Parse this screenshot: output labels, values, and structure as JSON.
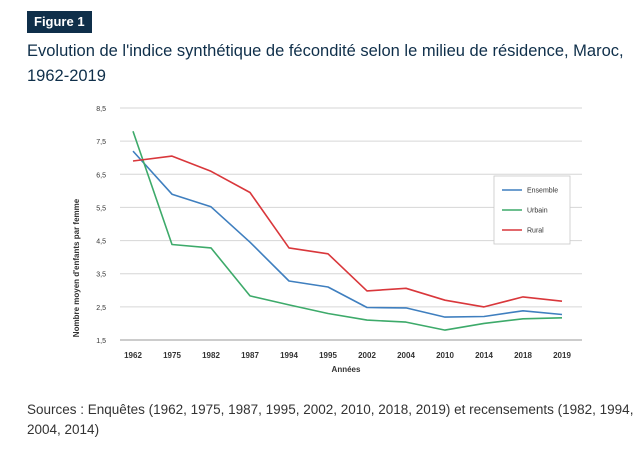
{
  "figure_label": "Figure 1",
  "title": "Evolution de l'indice synthétique de fécondité selon le milieu de résidence, Maroc, 1962-2019",
  "sources": "Sources : Enquêtes (1962, 1975, 1987, 1995, 2002, 2010, 2018, 2019) et recensements (1982, 1994, 2004, 2014)",
  "colors": {
    "ensemble": "#3f7fbf",
    "urbain": "#3daa6a",
    "rural": "#d9373b",
    "grid": "#d6d6d6",
    "axis_text": "#333333"
  },
  "chart_data": {
    "type": "line",
    "title": "",
    "xlabel": "Années",
    "ylabel": "Nombre moyen d'enfants par femme",
    "categories": [
      "1962",
      "1975",
      "1982",
      "1987",
      "1994",
      "1995",
      "2002",
      "2004",
      "2010",
      "2014",
      "2018",
      "2019"
    ],
    "ylim": [
      1.5,
      8.5
    ],
    "yticks": [
      "1,5",
      "2,5",
      "3,5",
      "4,5",
      "5,5",
      "6,5",
      "7,5",
      "8,5"
    ],
    "ytick_values": [
      1.5,
      2.5,
      3.5,
      4.5,
      5.5,
      6.5,
      7.5,
      8.5
    ],
    "legend_position": "right",
    "series": [
      {
        "key": "ensemble",
        "name": "Ensemble",
        "values": [
          7.2,
          5.9,
          5.52,
          4.45,
          3.28,
          3.1,
          2.48,
          2.47,
          2.19,
          2.21,
          2.38,
          2.27
        ]
      },
      {
        "key": "urbain",
        "name": "Urbain",
        "values": [
          7.8,
          4.38,
          4.28,
          2.83,
          2.56,
          2.3,
          2.1,
          2.04,
          1.8,
          2.0,
          2.14,
          2.17
        ]
      },
      {
        "key": "rural",
        "name": "Rural",
        "values": [
          6.9,
          7.05,
          6.59,
          5.95,
          4.28,
          4.1,
          2.98,
          3.06,
          2.7,
          2.5,
          2.8,
          2.67
        ]
      }
    ]
  }
}
